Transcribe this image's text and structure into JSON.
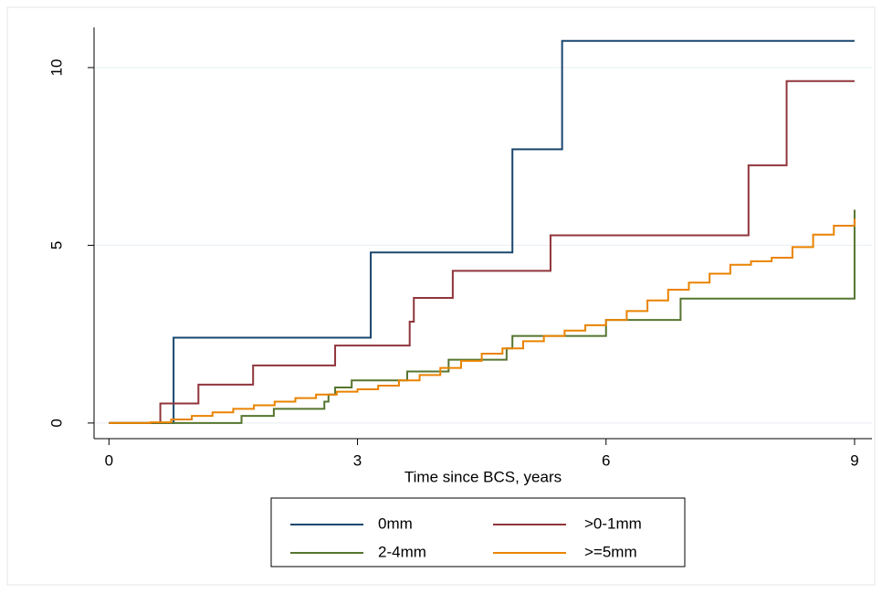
{
  "chart_data": {
    "type": "step",
    "xlabel": "Time since BCS, years",
    "xlim": [
      -0.18,
      9.21
    ],
    "ylim": [
      -0.44,
      11.13
    ],
    "xticks": [
      0,
      3,
      6,
      9
    ],
    "yticks": [
      0,
      5,
      10
    ],
    "grid": true,
    "series": [
      {
        "name": "0mm",
        "color": "#1a476f",
        "x": [
          0,
          0.78,
          3.16,
          4.87,
          5.47,
          9.0
        ],
        "values": [
          0,
          2.4,
          4.8,
          7.7,
          10.75,
          10.75
        ]
      },
      {
        "name": ">0-1mm",
        "color": "#90353b",
        "x": [
          0,
          0.62,
          1.08,
          1.74,
          2.73,
          3.63,
          3.68,
          4.15,
          5.33,
          7.72,
          8.18,
          9.0
        ],
        "values": [
          0,
          0.55,
          1.08,
          1.62,
          2.18,
          2.85,
          3.52,
          4.28,
          5.28,
          7.25,
          9.62,
          9.62
        ]
      },
      {
        "name": "2-4mm",
        "color": "#55752f",
        "x": [
          0,
          1.6,
          1.99,
          2.6,
          2.65,
          2.73,
          2.93,
          3.6,
          4.1,
          4.8,
          4.87,
          6.0,
          6.9,
          9.0
        ],
        "values": [
          0,
          0.2,
          0.4,
          0.6,
          0.8,
          1.0,
          1.2,
          1.45,
          1.78,
          2.1,
          2.45,
          2.9,
          3.5,
          6.0
        ]
      },
      {
        "name": ">=5mm",
        "color": "#e98300",
        "x": [
          0,
          0.5,
          0.75,
          1,
          1.25,
          1.5,
          1.75,
          2,
          2.25,
          2.5,
          2.75,
          3,
          3.25,
          3.5,
          3.75,
          4,
          4.25,
          4.5,
          4.75,
          5,
          5.25,
          5.5,
          5.75,
          6,
          6.25,
          6.5,
          6.75,
          7,
          7.25,
          7.5,
          7.75,
          8,
          8.25,
          8.5,
          8.75,
          9
        ],
        "values": [
          0,
          0.02,
          0.1,
          0.2,
          0.3,
          0.4,
          0.5,
          0.6,
          0.7,
          0.8,
          0.88,
          0.95,
          1.05,
          1.2,
          1.35,
          1.55,
          1.75,
          1.95,
          2.1,
          2.3,
          2.45,
          2.6,
          2.75,
          2.9,
          3.15,
          3.45,
          3.75,
          3.95,
          4.2,
          4.45,
          4.55,
          4.65,
          4.95,
          5.3,
          5.55,
          5.75
        ]
      }
    ]
  }
}
